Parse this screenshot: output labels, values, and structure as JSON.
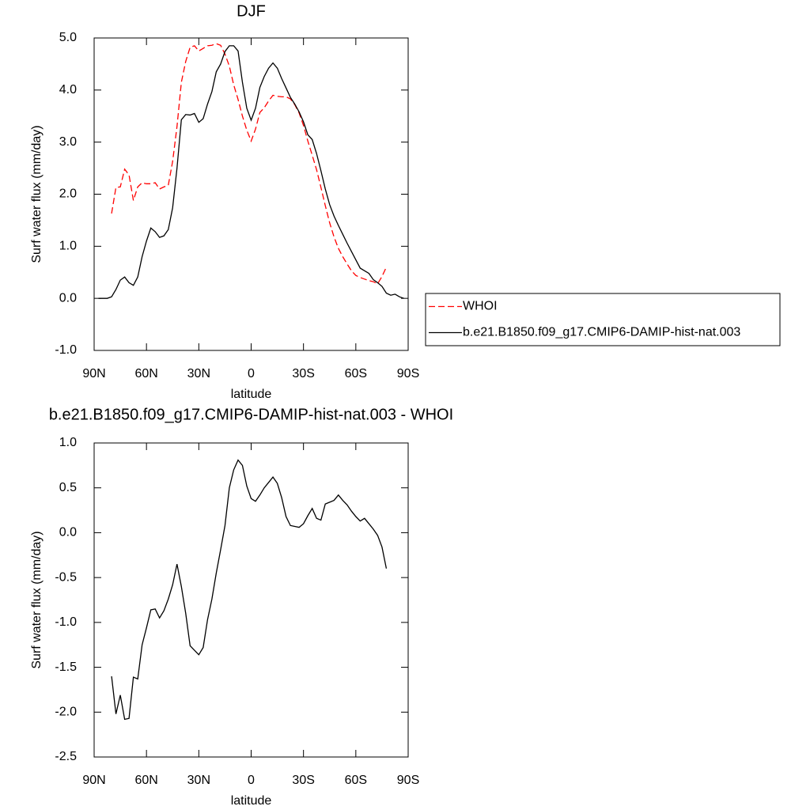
{
  "chart_data": [
    {
      "type": "line",
      "title": "DJF",
      "xlabel": "latitude",
      "ylabel": "Surf water flux (mm/day)",
      "x": [
        87.5,
        85,
        82.5,
        80,
        77.5,
        75,
        72.5,
        70,
        67.5,
        65,
        62.5,
        60,
        57.5,
        55,
        52.5,
        50,
        47.5,
        45,
        42.5,
        40,
        37.5,
        35,
        32.5,
        30,
        27.5,
        25,
        22.5,
        20,
        17.5,
        15,
        12.5,
        10,
        7.5,
        5,
        2.5,
        0,
        -2.5,
        -5,
        -7.5,
        -10,
        -12.5,
        -15,
        -17.5,
        -20,
        -22.5,
        -25,
        -27.5,
        -30,
        -32.5,
        -35,
        -37.5,
        -40,
        -42.5,
        -45,
        -47.5,
        -50,
        -52.5,
        -55,
        -57.5,
        -60,
        -62.5,
        -65,
        -67.5,
        -70,
        -72.5,
        -75,
        -77.5,
        -80,
        -82.5,
        -85,
        -87.5
      ],
      "series": [
        {
          "name": "WHOI",
          "color": "#ff0000",
          "dashed": true,
          "values": [
            null,
            null,
            null,
            1.63,
            2.13,
            2.14,
            2.48,
            2.37,
            1.88,
            2.14,
            2.22,
            2.2,
            2.2,
            2.22,
            2.1,
            2.14,
            2.17,
            2.63,
            3.3,
            4.15,
            4.55,
            4.82,
            4.85,
            4.75,
            4.8,
            4.85,
            4.86,
            4.89,
            4.86,
            4.69,
            4.46,
            4.1,
            3.82,
            3.5,
            3.23,
            3.02,
            3.25,
            3.57,
            3.66,
            3.79,
            3.9,
            3.88,
            3.87,
            3.87,
            3.83,
            3.72,
            3.56,
            3.32,
            3.02,
            2.75,
            2.47,
            2.13,
            1.78,
            1.45,
            1.18,
            0.96,
            0.8,
            0.66,
            0.53,
            0.44,
            0.4,
            0.37,
            0.34,
            0.32,
            0.28,
            0.42,
            0.6,
            null,
            null,
            null,
            null
          ]
        },
        {
          "name": "b.e21.B1850.f09_g17.CMIP6-DAMIP-hist-nat.003",
          "color": "#000000",
          "dashed": false,
          "values": [
            0,
            0,
            0,
            0.03,
            0.17,
            0.35,
            0.41,
            0.3,
            0.25,
            0.41,
            0.8,
            1.1,
            1.35,
            1.28,
            1.17,
            1.2,
            1.32,
            1.74,
            2.5,
            3.43,
            3.53,
            3.52,
            3.55,
            3.38,
            3.45,
            3.73,
            3.97,
            4.35,
            4.5,
            4.74,
            4.85,
            4.85,
            4.75,
            4.15,
            3.65,
            3.42,
            3.65,
            4.05,
            4.26,
            4.42,
            4.52,
            4.42,
            4.22,
            4.04,
            3.86,
            3.73,
            3.58,
            3.39,
            3.14,
            3.05,
            2.78,
            2.45,
            2.1,
            1.8,
            1.58,
            1.4,
            1.23,
            1.06,
            0.9,
            0.74,
            0.58,
            0.53,
            0.48,
            0.36,
            0.3,
            0.23,
            0.1,
            0.06,
            0.08,
            0.03,
            0
          ]
        }
      ],
      "xlim": [
        90,
        -90
      ],
      "xticks": [
        {
          "value": 90,
          "label": "90N"
        },
        {
          "value": 60,
          "label": "60N"
        },
        {
          "value": 30,
          "label": "30N"
        },
        0,
        {
          "value": -30,
          "label": "30S"
        },
        {
          "value": -60,
          "label": "60S"
        },
        {
          "value": -90,
          "label": "90S"
        }
      ],
      "ylim": [
        -1,
        5
      ],
      "yticks": [
        {
          "value": -1,
          "label": "-1.0"
        },
        {
          "value": 0,
          "label": "0.0"
        },
        {
          "value": 1,
          "label": "1.0"
        },
        {
          "value": 2,
          "label": "2.0"
        },
        {
          "value": 3,
          "label": "3.0"
        },
        {
          "value": 4,
          "label": "4.0"
        },
        {
          "value": 5,
          "label": "5.0"
        }
      ],
      "grid": false,
      "legend": "outside-right"
    },
    {
      "type": "line",
      "title": "b.e21.B1850.f09_g17.CMIP6-DAMIP-hist-nat.003 - WHOI",
      "xlabel": "latitude",
      "ylabel": "Surf water flux (mm/day)",
      "x": [
        80,
        77.5,
        75,
        72.5,
        70,
        67.5,
        65,
        62.5,
        60,
        57.5,
        55,
        52.5,
        50,
        47.5,
        45,
        42.5,
        40,
        37.5,
        35,
        32.5,
        30,
        27.5,
        25,
        22.5,
        20,
        17.5,
        15,
        12.5,
        10,
        7.5,
        5,
        2.5,
        0,
        -2.5,
        -5,
        -7.5,
        -10,
        -12.5,
        -15,
        -17.5,
        -20,
        -22.5,
        -25,
        -27.5,
        -30,
        -32.5,
        -35,
        -37.5,
        -40,
        -42.5,
        -45,
        -47.5,
        -50,
        -52.5,
        -55,
        -57.5,
        -60,
        -62.5,
        -65,
        -67.5,
        -70,
        -72.5,
        -75,
        -77.5
      ],
      "series": [
        {
          "color": "#000000",
          "dashed": false,
          "values": [
            -1.6,
            -2.02,
            -1.81,
            -2.08,
            -2.07,
            -1.61,
            -1.63,
            -1.25,
            -1.06,
            -0.86,
            -0.85,
            -0.95,
            -0.87,
            -0.74,
            -0.58,
            -0.35,
            -0.6,
            -0.9,
            -1.26,
            -1.31,
            -1.36,
            -1.28,
            -0.97,
            -0.74,
            -0.45,
            -0.19,
            0.08,
            0.5,
            0.7,
            0.81,
            0.75,
            0.52,
            0.38,
            0.35,
            0.42,
            0.5,
            0.56,
            0.62,
            0.55,
            0.39,
            0.18,
            0.08,
            0.07,
            0.06,
            0.1,
            0.19,
            0.27,
            0.16,
            0.14,
            0.32,
            0.34,
            0.36,
            0.42,
            0.36,
            0.31,
            0.24,
            0.18,
            0.13,
            0.16,
            0.1,
            0.04,
            -0.03,
            -0.16,
            -0.4
          ]
        }
      ],
      "xlim": [
        90,
        -90
      ],
      "xticks": [
        {
          "value": 90,
          "label": "90N"
        },
        {
          "value": 60,
          "label": "60N"
        },
        {
          "value": 30,
          "label": "30N"
        },
        0,
        {
          "value": -30,
          "label": "30S"
        },
        {
          "value": -60,
          "label": "60S"
        },
        {
          "value": -90,
          "label": "90S"
        }
      ],
      "ylim": [
        -2.5,
        1
      ],
      "yticks": [
        -2.5,
        {
          "value": -2,
          "label": "-2.0"
        },
        -1.5,
        {
          "value": -1,
          "label": "-1.0"
        },
        -0.5,
        {
          "value": 0,
          "label": "0.0"
        },
        0.5,
        {
          "value": 1,
          "label": "1.0"
        }
      ],
      "grid": false
    }
  ]
}
